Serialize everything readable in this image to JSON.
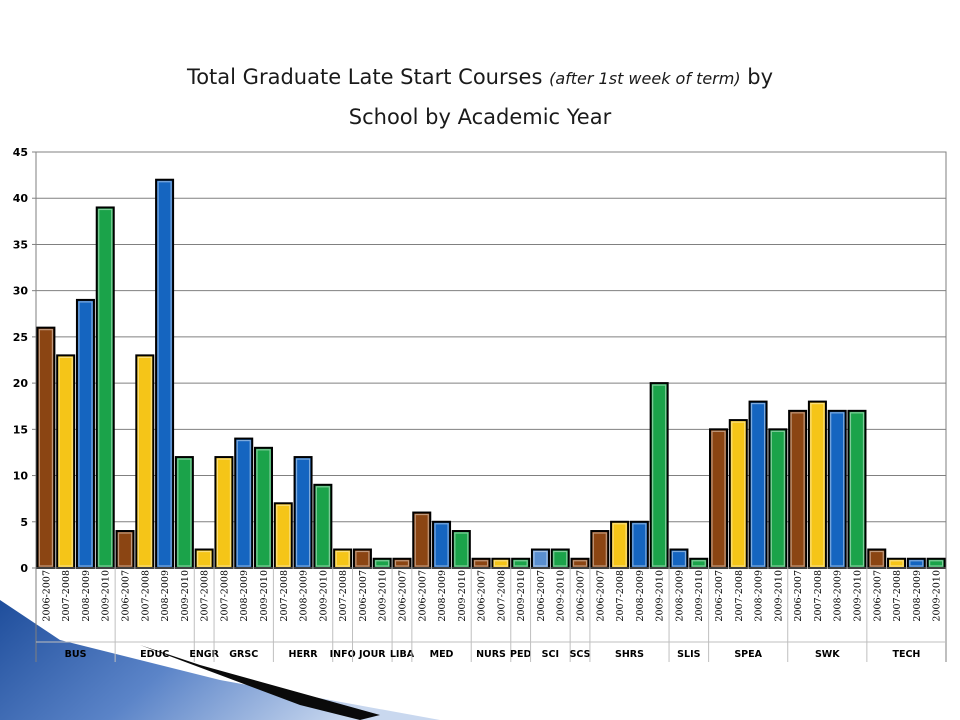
{
  "title": {
    "part1": "Total Graduate Late Start Courses ",
    "part2": "(after 1st week of term)",
    "part3": " by",
    "line2": "School by Academic Year"
  },
  "chart_data": {
    "type": "bar",
    "title": "Total Graduate Late Start Courses (after 1st week of term) by School by Academic Year",
    "ylim": [
      0,
      45
    ],
    "yticks": [
      0,
      5,
      10,
      15,
      20,
      25,
      30,
      35,
      40,
      45
    ],
    "grid": true,
    "colors": {
      "2006-2007": "#8B4513",
      "2007-2008": "#F5C518",
      "2008-2009": "#1565C0",
      "2009-2010": "#1BA34A",
      "highlight": "#5A8FD0"
    },
    "groups": [
      {
        "school": "BUS",
        "bars": [
          {
            "year": "2006-2007",
            "value": 26
          },
          {
            "year": "2007-2008",
            "value": 23
          },
          {
            "year": "2008-2009",
            "value": 29
          },
          {
            "year": "2009-2010",
            "value": 39
          }
        ]
      },
      {
        "school": "EDUC",
        "bars": [
          {
            "year": "2006-2007",
            "value": 4
          },
          {
            "year": "2007-2008",
            "value": 23
          },
          {
            "year": "2008-2009",
            "value": 42
          },
          {
            "year": "2009-2010",
            "value": 12
          }
        ]
      },
      {
        "school": "ENGR",
        "bars": [
          {
            "year": "2007-2008",
            "value": 2
          }
        ]
      },
      {
        "school": "GRSC",
        "bars": [
          {
            "year": "2007-2008",
            "value": 12
          },
          {
            "year": "2008-2009",
            "value": 14
          },
          {
            "year": "2009-2010",
            "value": 13
          }
        ]
      },
      {
        "school": "HERR",
        "bars": [
          {
            "year": "2007-2008",
            "value": 7
          },
          {
            "year": "2008-2009",
            "value": 12
          },
          {
            "year": "2009-2010",
            "value": 9
          }
        ]
      },
      {
        "school": "INFO",
        "bars": [
          {
            "year": "2007-2008",
            "value": 2
          }
        ]
      },
      {
        "school": "JOUR",
        "bars": [
          {
            "year": "2006-2007",
            "value": 2
          },
          {
            "year": "2009-2010",
            "value": 1
          }
        ]
      },
      {
        "school": "LIBA",
        "bars": [
          {
            "year": "2006-2007",
            "value": 1
          }
        ]
      },
      {
        "school": "MED",
        "bars": [
          {
            "year": "2006-2007",
            "value": 6
          },
          {
            "year": "2008-2009",
            "value": 5
          },
          {
            "year": "2009-2010",
            "value": 4
          }
        ]
      },
      {
        "school": "NURS",
        "bars": [
          {
            "year": "2006-2007",
            "value": 1
          },
          {
            "year": "2007-2008",
            "value": 1
          }
        ]
      },
      {
        "school": "PED",
        "bars": [
          {
            "year": "2009-2010",
            "value": 1
          }
        ]
      },
      {
        "school": "SCI",
        "bars": [
          {
            "year": "2006-2007",
            "value": 2,
            "highlight": true
          },
          {
            "year": "2009-2010",
            "value": 2
          }
        ]
      },
      {
        "school": "SCS",
        "bars": [
          {
            "year": "2006-2007",
            "value": 1
          }
        ]
      },
      {
        "school": "SHRS",
        "bars": [
          {
            "year": "2006-2007",
            "value": 4
          },
          {
            "year": "2007-2008",
            "value": 5
          },
          {
            "year": "2008-2009",
            "value": 5
          },
          {
            "year": "2009-2010",
            "value": 20
          }
        ]
      },
      {
        "school": "SLIS",
        "bars": [
          {
            "year": "2008-2009",
            "value": 2
          },
          {
            "year": "2009-2010",
            "value": 1
          }
        ]
      },
      {
        "school": "SPEA",
        "bars": [
          {
            "year": "2006-2007",
            "value": 15
          },
          {
            "year": "2007-2008",
            "value": 16
          },
          {
            "year": "2008-2009",
            "value": 18
          },
          {
            "year": "2009-2010",
            "value": 15
          }
        ]
      },
      {
        "school": "SWK",
        "bars": [
          {
            "year": "2006-2007",
            "value": 17
          },
          {
            "year": "2007-2008",
            "value": 18
          },
          {
            "year": "2008-2009",
            "value": 17
          },
          {
            "year": "2009-2010",
            "value": 17
          }
        ]
      },
      {
        "school": "TECH",
        "bars": [
          {
            "year": "2006-2007",
            "value": 2
          },
          {
            "year": "2007-2008",
            "value": 1
          },
          {
            "year": "2008-2009",
            "value": 1
          },
          {
            "year": "2009-2010",
            "value": 1
          }
        ]
      }
    ]
  }
}
